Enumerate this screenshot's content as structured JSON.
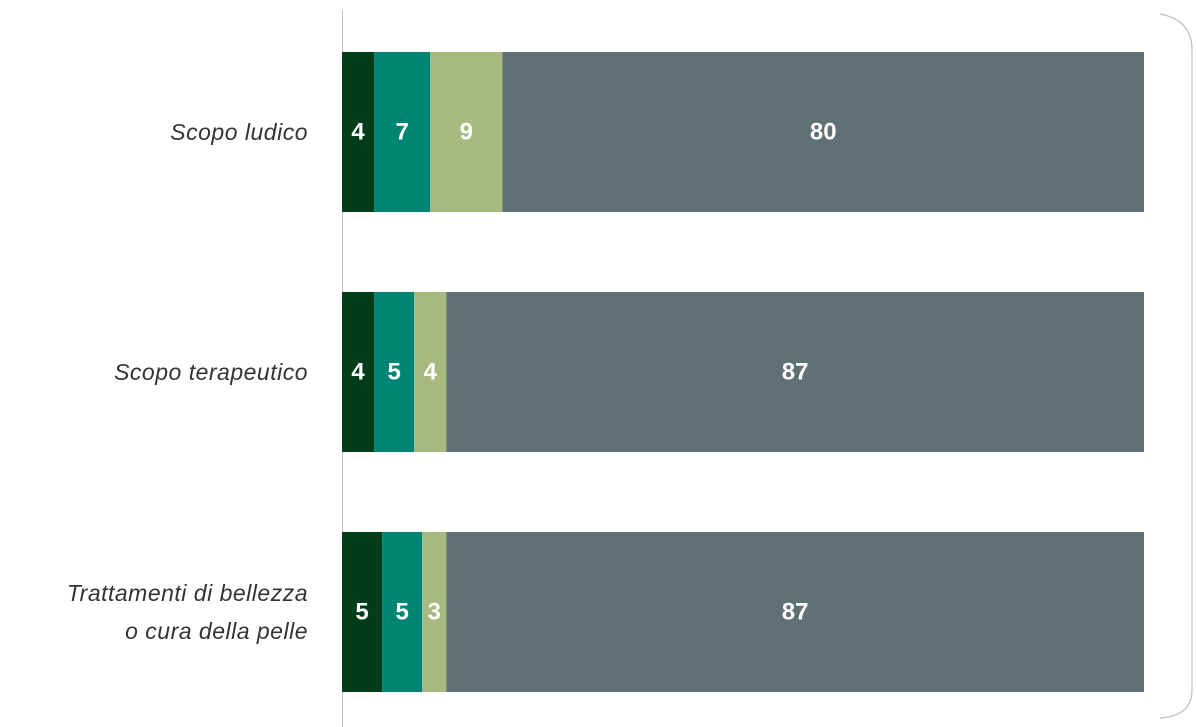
{
  "chart_data": {
    "type": "stacked-bar-horizontal",
    "categories": [
      "Scopo ludico",
      "Scopo terapeutico",
      "Trattamenti di bellezza\no cura della pelle"
    ],
    "series": [
      {
        "color": "#003d18",
        "values": [
          4,
          4,
          5
        ]
      },
      {
        "color": "#008574",
        "values": [
          7,
          5,
          5
        ]
      },
      {
        "color": "#a7b97e",
        "values": [
          9,
          4,
          3
        ]
      },
      {
        "color": "#5f7174",
        "values": [
          80,
          87,
          87
        ]
      }
    ],
    "xlim": [
      0,
      100
    ]
  }
}
